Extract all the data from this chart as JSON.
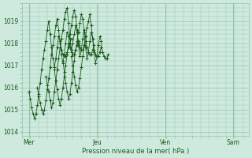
{
  "bg_color": "#ceeade",
  "grid_color": "#98c4aa",
  "line_color": "#1a5c1a",
  "ylabel": "Pression niveau de la mer( hPa )",
  "xtick_labels": [
    "Mer",
    "Jeu",
    "Ven",
    "Sam"
  ],
  "xtick_positions": [
    0,
    48,
    96,
    144
  ],
  "ylim": [
    1013.8,
    1019.8
  ],
  "yticks": [
    1014,
    1015,
    1016,
    1017,
    1018,
    1019
  ],
  "xlim": [
    -5,
    155
  ],
  "series": [
    {
      "start": 0,
      "data": [
        1015.8,
        1015.5,
        1015.1,
        1014.8,
        1014.6,
        1014.8,
        1015.2,
        1015.7,
        1016.2,
        1016.8,
        1017.3,
        1017.7,
        1018.1,
        1018.6,
        1019.0,
        1018.4,
        1017.8,
        1017.3,
        1016.9,
        1017.3,
        1017.8,
        1018.3,
        1018.1,
        1017.7,
        1017.5,
        1017.4,
        1017.4,
        1017.6,
        1017.8,
        1018.0,
        1018.2
      ]
    },
    {
      "start": 6,
      "data": [
        1016.0,
        1015.6,
        1015.3,
        1015.0,
        1014.8,
        1015.0,
        1015.4,
        1015.9,
        1016.4,
        1016.9,
        1017.5,
        1017.9,
        1018.3,
        1018.8,
        1019.1,
        1018.6,
        1018.0,
        1017.5,
        1017.1,
        1017.5,
        1018.0,
        1018.5,
        1018.3,
        1017.8,
        1017.6,
        1017.5,
        1017.5,
        1017.7,
        1017.9,
        1018.1
      ]
    },
    {
      "start": 12,
      "data": [
        1016.5,
        1016.1,
        1015.8,
        1015.4,
        1015.1,
        1015.3,
        1015.8,
        1016.3,
        1016.8,
        1017.3,
        1017.8,
        1018.2,
        1018.6,
        1019.1,
        1019.4,
        1019.6,
        1018.9,
        1018.2,
        1017.7,
        1018.0,
        1018.4,
        1018.8,
        1018.5,
        1018.0,
        1017.8,
        1017.7,
        1017.7,
        1017.9,
        1018.1
      ]
    },
    {
      "start": 18,
      "data": [
        1016.8,
        1016.3,
        1015.9,
        1015.5,
        1015.2,
        1015.5,
        1016.0,
        1016.5,
        1017.0,
        1017.5,
        1018.0,
        1018.4,
        1018.8,
        1019.2,
        1019.5,
        1019.2,
        1018.6,
        1017.9,
        1017.4,
        1017.7,
        1018.2,
        1018.6,
        1018.3,
        1017.8,
        1017.6,
        1017.5,
        1017.5,
        1017.7,
        1017.9
      ]
    },
    {
      "start": 24,
      "data": [
        1017.2,
        1016.7,
        1016.2,
        1015.8,
        1015.5,
        1015.7,
        1016.2,
        1016.7,
        1017.2,
        1017.7,
        1018.1,
        1018.5,
        1018.9,
        1019.3,
        1019.1,
        1018.5,
        1017.8,
        1017.3,
        1017.6,
        1018.1,
        1018.5,
        1018.2,
        1017.7,
        1017.5,
        1017.4,
        1017.4,
        1017.6,
        1017.8
      ]
    },
    {
      "start": 30,
      "data": [
        1017.4,
        1017.0,
        1016.5,
        1016.1,
        1015.8,
        1016.0,
        1016.4,
        1016.9,
        1017.4,
        1017.9,
        1018.3,
        1018.7,
        1019.0,
        1019.3,
        1018.8,
        1018.2,
        1017.6,
        1017.1,
        1017.4,
        1017.9,
        1018.3,
        1018.1,
        1017.6,
        1017.4,
        1017.3,
        1017.3,
        1017.5
      ]
    }
  ]
}
